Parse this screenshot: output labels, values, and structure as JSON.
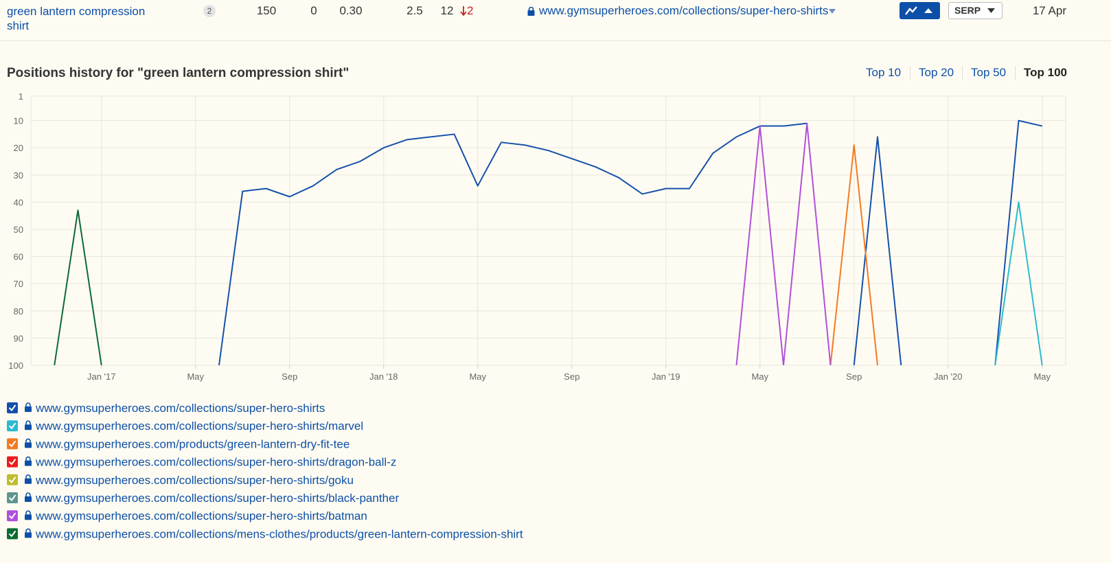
{
  "row": {
    "keyword": "green lantern compression shirt",
    "badge": 2,
    "volume": 150,
    "kd": 0,
    "cpc": "0.30",
    "traffic": 2.5,
    "position": 12,
    "change": 2,
    "url": "www.gymsuperheroes.com/collections/super-hero-shirts",
    "serp": "SERP",
    "date": "17 Apr"
  },
  "tabs": [
    "Top 10",
    "Top 20",
    "Top 50",
    "Top 100"
  ],
  "active_tab": 3,
  "chart_data": {
    "type": "line",
    "title": "Positions history for \"green lantern compression shirt\"",
    "x": [
      "2016-10",
      "2016-11",
      "2016-12",
      "2017-01",
      "2017-02",
      "2017-03",
      "2017-04",
      "2017-05",
      "2017-06",
      "2017-07",
      "2017-08",
      "2017-09",
      "2017-10",
      "2017-11",
      "2017-12",
      "2018-01",
      "2018-02",
      "2018-03",
      "2018-04",
      "2018-05",
      "2018-06",
      "2018-07",
      "2018-08",
      "2018-09",
      "2018-10",
      "2018-11",
      "2018-12",
      "2019-01",
      "2019-02",
      "2019-03",
      "2019-04",
      "2019-05",
      "2019-06",
      "2019-07",
      "2019-08",
      "2019-09",
      "2019-10",
      "2019-11",
      "2019-12",
      "2020-01",
      "2020-02",
      "2020-03",
      "2020-04",
      "2020-05"
    ],
    "xlim": [
      "2016-10",
      "2020-06"
    ],
    "xticks": [
      {
        "value": "2017-01",
        "label": "Jan '17"
      },
      {
        "value": "2017-05",
        "label": "May"
      },
      {
        "value": "2017-09",
        "label": "Sep"
      },
      {
        "value": "2018-01",
        "label": "Jan '18"
      },
      {
        "value": "2018-05",
        "label": "May"
      },
      {
        "value": "2018-09",
        "label": "Sep"
      },
      {
        "value": "2019-01",
        "label": "Jan '19"
      },
      {
        "value": "2019-05",
        "label": "May"
      },
      {
        "value": "2019-09",
        "label": "Sep"
      },
      {
        "value": "2020-01",
        "label": "Jan '20"
      },
      {
        "value": "2020-05",
        "label": "May"
      }
    ],
    "ylim": [
      1,
      100
    ],
    "y_inverted": true,
    "yticks": [
      1,
      10,
      20,
      30,
      40,
      50,
      60,
      70,
      80,
      90,
      100
    ],
    "grid": true,
    "series": [
      {
        "name": "www.gymsuperheroes.com/collections/super-hero-shirts",
        "color": "#1550ad",
        "values": [
          null,
          null,
          null,
          null,
          null,
          null,
          null,
          null,
          100,
          36,
          35,
          38,
          34,
          28,
          25,
          20,
          17,
          16,
          15,
          34,
          18,
          19,
          21,
          24,
          27,
          31,
          37,
          35,
          35,
          22,
          16,
          12,
          12,
          11,
          null,
          100,
          16,
          100,
          null,
          null,
          null,
          100,
          10,
          12
        ]
      },
      {
        "name": "www.gymsuperheroes.com/collections/super-hero-shirts/marvel",
        "color": "#2bbad0",
        "values": [
          null,
          null,
          null,
          null,
          null,
          null,
          null,
          null,
          null,
          null,
          null,
          null,
          null,
          null,
          null,
          null,
          null,
          null,
          null,
          null,
          null,
          null,
          null,
          null,
          null,
          null,
          null,
          null,
          null,
          null,
          null,
          null,
          null,
          null,
          null,
          null,
          null,
          null,
          null,
          null,
          null,
          100,
          40,
          100
        ]
      },
      {
        "name": "www.gymsuperheroes.com/products/green-lantern-dry-fit-tee",
        "color": "#f47a22",
        "values": [
          null,
          null,
          null,
          null,
          null,
          null,
          null,
          null,
          null,
          null,
          null,
          null,
          null,
          null,
          null,
          null,
          null,
          null,
          null,
          null,
          null,
          null,
          null,
          null,
          null,
          null,
          null,
          null,
          null,
          null,
          null,
          null,
          null,
          null,
          100,
          19,
          100,
          null,
          null,
          null,
          null,
          null,
          null,
          null
        ]
      },
      {
        "name": "www.gymsuperheroes.com/collections/super-hero-shirts/dragon-ball-z",
        "color": "#ee1b1b",
        "values": [
          null,
          null,
          null,
          null,
          null,
          null,
          null,
          null,
          null,
          null,
          null,
          null,
          null,
          null,
          null,
          null,
          null,
          null,
          null,
          null,
          null,
          null,
          null,
          null,
          null,
          null,
          null,
          null,
          null,
          null,
          null,
          null,
          null,
          null,
          null,
          null,
          null,
          null,
          null,
          null,
          null,
          null,
          null,
          null
        ]
      },
      {
        "name": "www.gymsuperheroes.com/collections/super-hero-shirts/goku",
        "color": "#bdbd2e",
        "values": [
          null,
          null,
          null,
          null,
          null,
          null,
          null,
          null,
          null,
          null,
          null,
          null,
          null,
          null,
          null,
          null,
          null,
          null,
          null,
          null,
          null,
          null,
          null,
          null,
          null,
          null,
          null,
          null,
          null,
          null,
          null,
          null,
          null,
          null,
          null,
          null,
          null,
          null,
          null,
          null,
          null,
          null,
          null,
          null
        ]
      },
      {
        "name": "www.gymsuperheroes.com/collections/super-hero-shirts/black-panther",
        "color": "#5e958f",
        "values": [
          null,
          null,
          null,
          null,
          null,
          null,
          null,
          null,
          null,
          null,
          null,
          null,
          null,
          null,
          null,
          null,
          null,
          null,
          null,
          null,
          null,
          null,
          null,
          null,
          null,
          null,
          null,
          null,
          null,
          null,
          null,
          null,
          null,
          null,
          null,
          null,
          null,
          null,
          null,
          null,
          null,
          null,
          null,
          null
        ]
      },
      {
        "name": "www.gymsuperheroes.com/collections/super-hero-shirts/batman",
        "color": "#b04fdc",
        "values": [
          null,
          null,
          null,
          null,
          null,
          null,
          null,
          null,
          null,
          null,
          null,
          null,
          null,
          null,
          null,
          null,
          null,
          null,
          null,
          null,
          null,
          null,
          null,
          null,
          null,
          null,
          null,
          null,
          null,
          null,
          100,
          12,
          100,
          11,
          100,
          null,
          null,
          null,
          null,
          null,
          null,
          null,
          null,
          null
        ]
      },
      {
        "name": "www.gymsuperheroes.com/collections/mens-clothes/products/green-lantern-compression-shirt",
        "color": "#0b6a34",
        "values": [
          null,
          100,
          43,
          100,
          null,
          null,
          null,
          null,
          null,
          null,
          null,
          null,
          null,
          null,
          null,
          null,
          null,
          null,
          null,
          null,
          null,
          null,
          null,
          null,
          null,
          null,
          null,
          null,
          null,
          null,
          null,
          null,
          null,
          null,
          null,
          null,
          null,
          null,
          null,
          null,
          null,
          null,
          null,
          null
        ]
      }
    ]
  }
}
